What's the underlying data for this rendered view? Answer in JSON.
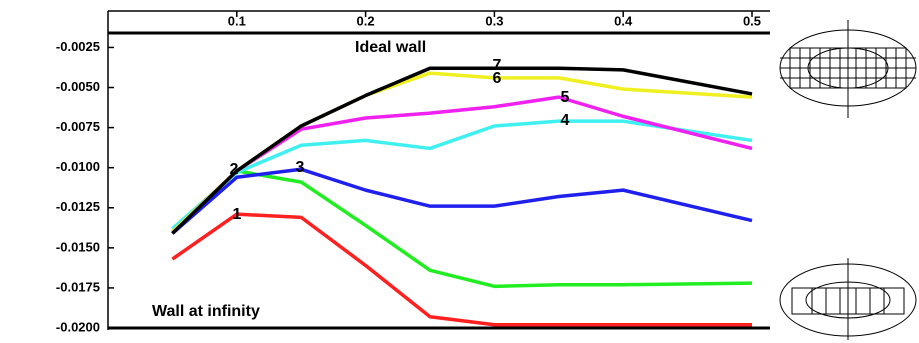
{
  "chart_data": {
    "type": "line",
    "annotations": [
      "Ideal wall",
      "Wall at infinity"
    ],
    "x": [
      0.05,
      0.1,
      0.15,
      0.2,
      0.25,
      0.3,
      0.35,
      0.4,
      0.5
    ],
    "xlim": [
      0,
      0.5
    ],
    "xticks": [
      0.1,
      0.2,
      0.3,
      0.4,
      0.5
    ],
    "ylim": [
      -0.02,
      -0.0016
    ],
    "yticks": [
      -0.0025,
      {
        "value": -0.005,
        "label": "-0.0050"
      },
      -0.0075,
      {
        "value": -0.01,
        "label": "-0.0100"
      },
      -0.0125,
      {
        "value": -0.015,
        "label": "-0.0150"
      },
      -0.0175,
      {
        "value": -0.02,
        "label": "-0.0200"
      }
    ],
    "series": [
      {
        "name": "1",
        "color": "#ff2020",
        "values": [
          -0.0157,
          -0.0129,
          -0.0131,
          -0.0161,
          -0.0193,
          -0.0198,
          -0.0198,
          -0.0198,
          -0.0198
        ]
      },
      {
        "name": "2",
        "color": "#20ee20",
        "values": [
          -0.0141,
          -0.0102,
          -0.0109,
          -0.0136,
          -0.0164,
          -0.0174,
          -0.0173,
          -0.0173,
          -0.0172
        ]
      },
      {
        "name": "3",
        "color": "#2020ee",
        "values": [
          -0.0141,
          -0.0106,
          -0.0101,
          -0.0114,
          -0.0124,
          -0.0124,
          -0.0118,
          -0.0114,
          -0.0133
        ]
      },
      {
        "name": "4",
        "color": "#40f0f0",
        "values": [
          -0.0138,
          -0.0103,
          -0.0086,
          -0.0083,
          -0.0088,
          -0.0074,
          -0.0071,
          -0.0071,
          -0.0083
        ]
      },
      {
        "name": "5",
        "color": "#f020f0",
        "values": [
          -0.014,
          -0.0102,
          -0.0076,
          -0.0069,
          -0.0066,
          -0.0062,
          -0.0056,
          -0.0068,
          -0.0088
        ]
      },
      {
        "name": "6",
        "color": "#f0f020",
        "values": [
          -0.014,
          -0.0102,
          -0.0074,
          -0.0055,
          -0.0041,
          -0.0044,
          -0.0044,
          -0.0051,
          -0.0056
        ]
      },
      {
        "name": "7",
        "color": "#000000",
        "values": [
          -0.0141,
          -0.0102,
          -0.0074,
          -0.0055,
          -0.0038,
          -0.0038,
          -0.0038,
          -0.0039,
          -0.0054
        ]
      }
    ]
  }
}
